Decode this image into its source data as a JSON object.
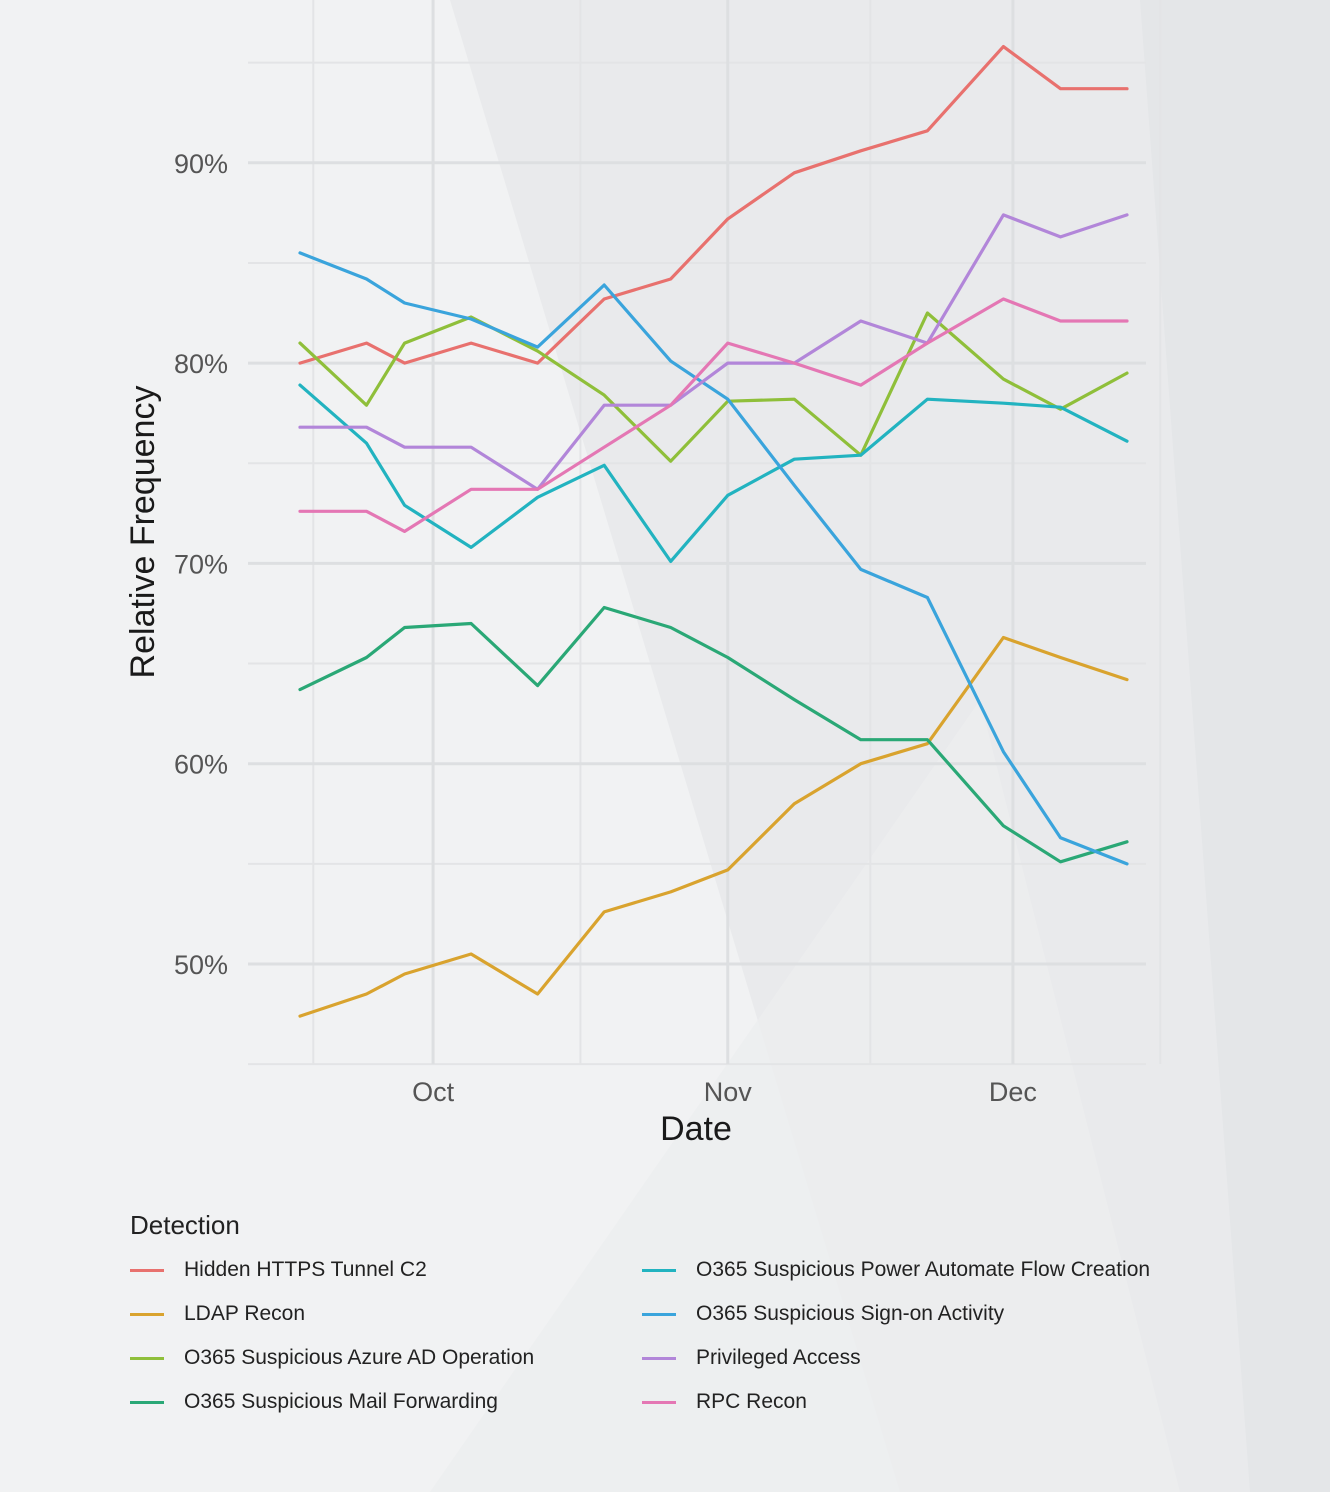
{
  "chart_data": {
    "type": "line",
    "xlabel": "Date",
    "ylabel": "Relative Frequency",
    "x_ticks": [
      {
        "label": "Oct",
        "date": "2023-10-01"
      },
      {
        "label": "Nov",
        "date": "2023-11-01"
      },
      {
        "label": "Dec",
        "date": "2023-12-01"
      }
    ],
    "xlim": [
      "2023-09-13",
      "2023-12-18"
    ],
    "ylim": [
      45,
      96.5
    ],
    "y_ticks": [
      {
        "value": 50,
        "label": "50%"
      },
      {
        "value": 60,
        "label": "60%"
      },
      {
        "value": 70,
        "label": "70%"
      },
      {
        "value": 80,
        "label": "80%"
      },
      {
        "value": 90,
        "label": "90%"
      }
    ],
    "grid": true,
    "legend_title": "Detection",
    "legend_position": "bottom",
    "x": [
      "2023-09-17",
      "2023-09-24",
      "2023-09-28",
      "2023-10-05",
      "2023-10-12",
      "2023-10-19",
      "2023-10-26",
      "2023-11-01",
      "2023-11-08",
      "2023-11-15",
      "2023-11-22",
      "2023-11-30",
      "2023-12-06",
      "2023-12-13"
    ],
    "series": [
      {
        "name": "Hidden HTTPS Tunnel C2",
        "color": "#e8716e",
        "values": [
          80.0,
          81.0,
          80.0,
          81.0,
          80.0,
          83.2,
          84.2,
          87.2,
          89.5,
          90.6,
          91.6,
          95.8,
          93.7,
          93.7
        ]
      },
      {
        "name": "LDAP Recon",
        "color": "#d9a32e",
        "values": [
          47.4,
          48.5,
          49.5,
          50.5,
          48.5,
          52.6,
          53.6,
          54.7,
          58.0,
          60.0,
          61.0,
          66.3,
          65.3,
          64.2
        ]
      },
      {
        "name": "O365 Suspicious Azure AD Operation",
        "color": "#8fbf3a",
        "values": [
          81.0,
          77.9,
          81.0,
          82.3,
          80.6,
          78.4,
          75.1,
          78.1,
          78.2,
          75.4,
          82.5,
          79.2,
          77.7,
          79.5
        ]
      },
      {
        "name": "O365 Suspicious Mail Forwarding",
        "color": "#2aa876",
        "values": [
          63.7,
          65.3,
          66.8,
          67.0,
          63.9,
          67.8,
          66.8,
          65.3,
          63.2,
          61.2,
          61.2,
          56.9,
          55.1,
          56.1
        ]
      },
      {
        "name": "O365 Suspicious Power Automate Flow Creation",
        "color": "#22b3c0",
        "values": [
          78.9,
          76.0,
          72.9,
          70.8,
          73.3,
          74.9,
          70.1,
          73.4,
          75.2,
          75.4,
          78.2,
          78.0,
          77.8,
          76.1
        ]
      },
      {
        "name": "O365 Suspicious Sign-on Activity",
        "color": "#3aa4dc",
        "values": [
          85.5,
          84.2,
          83.0,
          82.2,
          80.8,
          83.9,
          80.1,
          78.2,
          73.9,
          69.7,
          68.3,
          60.6,
          56.3,
          55.0
        ]
      },
      {
        "name": "Privileged Access",
        "color": "#b286d9",
        "values": [
          76.8,
          76.8,
          75.8,
          75.8,
          73.7,
          77.9,
          77.9,
          80.0,
          80.0,
          82.1,
          81.0,
          87.4,
          86.3,
          87.4
        ]
      },
      {
        "name": "RPC Recon",
        "color": "#e477b4",
        "values": [
          72.6,
          72.6,
          71.6,
          73.7,
          73.7,
          75.8,
          77.9,
          81.0,
          80.0,
          78.9,
          81.0,
          83.2,
          82.1,
          82.1
        ]
      }
    ]
  }
}
